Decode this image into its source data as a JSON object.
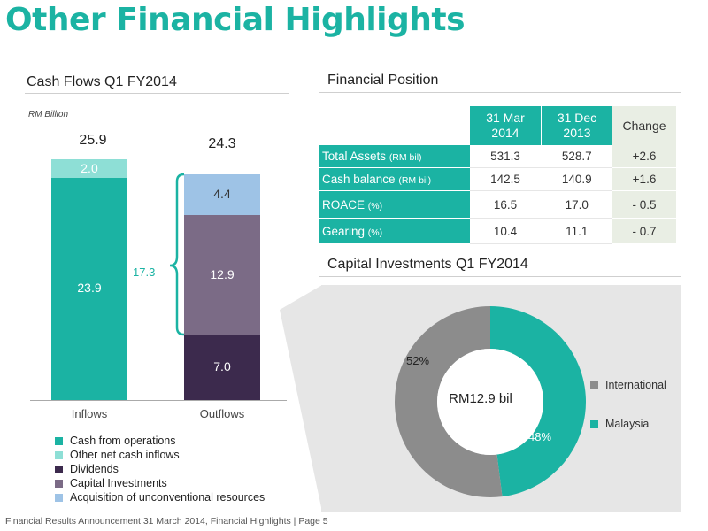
{
  "page": {
    "title": "Other Financial Highlights",
    "footer": "Financial Results Announcement 31 March 2014, Financial Highlights | Page 5"
  },
  "colors": {
    "teal": "#1bb3a3",
    "light_teal": "#8edfd6",
    "dark_purple": "#3c2a4d",
    "mauve": "#7b6b86",
    "light_blue": "#9ec3e6",
    "grey": "#8c8c8c",
    "panel_grey": "#e6e6e6"
  },
  "cash_flows": {
    "title": "Cash Flows Q1 FY2014",
    "unit": "RM Billion",
    "inflows_total": "25.9",
    "outflows_total": "24.3",
    "bracket_label": "17.3"
  },
  "financial_position": {
    "title": "Financial Position",
    "headers": [
      "31 Mar\n2014",
      "31 Dec\n2013",
      "Change"
    ],
    "rows": [
      {
        "label": "Total Assets",
        "unit": "(RM bil)",
        "mar": "531.3",
        "dec": "528.7",
        "change": "+2.6"
      },
      {
        "label": "Cash balance",
        "unit": "(RM bil)",
        "mar": "142.5",
        "dec": "140.9",
        "change": "+1.6"
      },
      {
        "label": "ROACE",
        "unit": "(%)",
        "mar": "16.5",
        "dec": "17.0",
        "change": "- 0.5"
      },
      {
        "label": "Gearing",
        "unit": "(%)",
        "mar": "10.4",
        "dec": "11.1",
        "change": "- 0.7"
      }
    ]
  },
  "capital_investments": {
    "title": "Capital Investments Q1 FY2014",
    "center_label": "RM12.9 bil"
  },
  "chart_data": [
    {
      "type": "bar",
      "stacked": true,
      "title": "Cash Flows Q1 FY2014",
      "ylabel": "RM Billion",
      "categories": [
        "Inflows",
        "Outflows"
      ],
      "totals": [
        25.9,
        24.3
      ],
      "series": [
        {
          "name": "Cash from operations",
          "color": "#1bb3a3",
          "values": [
            23.9,
            0
          ]
        },
        {
          "name": "Other net cash inflows",
          "color": "#8edfd6",
          "values": [
            2.0,
            0
          ]
        },
        {
          "name": "Dividends",
          "color": "#3c2a4d",
          "values": [
            0,
            7.0
          ]
        },
        {
          "name": "Capital Investments",
          "color": "#7b6b86",
          "values": [
            0,
            12.9
          ]
        },
        {
          "name": "Acquisition of unconventional resources",
          "color": "#9ec3e6",
          "values": [
            0,
            4.4
          ]
        }
      ],
      "legend_position": "bottom"
    },
    {
      "type": "pie",
      "donut": true,
      "title": "Capital Investments Q1 FY2014",
      "center_label": "RM12.9 bil",
      "slices": [
        {
          "name": "International",
          "value": 52,
          "label": "52%",
          "color": "#8c8c8c"
        },
        {
          "name": "Malaysia",
          "value": 48,
          "label": "48%",
          "color": "#1bb3a3"
        }
      ],
      "legend_position": "right"
    }
  ]
}
